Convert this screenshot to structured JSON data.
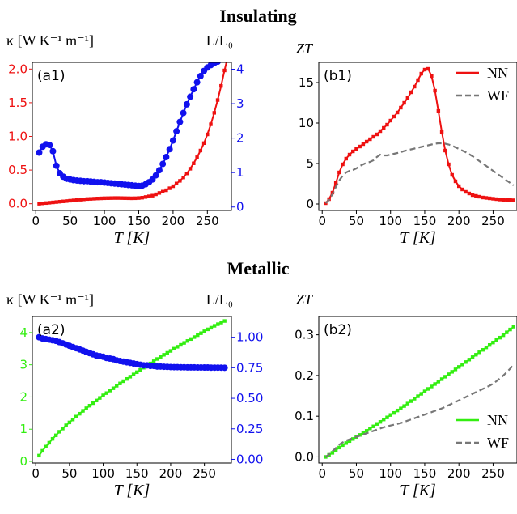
{
  "section_titles": {
    "top": "Insulating",
    "bottom": "Metallic"
  },
  "colors": {
    "red": "#ee1111",
    "blue": "#1111ee",
    "green": "#33ee11",
    "gray": "#777777"
  },
  "chart_data": [
    {
      "id": "a1",
      "type": "line",
      "panel_label": "(a1)",
      "title": "",
      "xlabel": "T [K]",
      "ylabel_left": "κ [W K⁻¹ m⁻¹]",
      "ylabel_right": "L/L₀",
      "xlim": [
        -5,
        285
      ],
      "ylim_left": [
        -0.1,
        2.1
      ],
      "ylim_right": [
        -0.1,
        4.2
      ],
      "xticks": [
        0,
        50,
        100,
        150,
        200,
        250
      ],
      "yticks_left": [
        "0.0",
        "0.5",
        "1.0",
        "1.5",
        "2.0"
      ],
      "yticks_right": [
        "0",
        "1",
        "2",
        "3",
        "4"
      ],
      "left_axis_color": "red",
      "right_axis_color": "blue",
      "grid": false,
      "series": [
        {
          "axis": "left",
          "color": "red",
          "marker": "square",
          "x": [
            5,
            10,
            15,
            20,
            25,
            30,
            35,
            40,
            45,
            50,
            55,
            60,
            65,
            70,
            75,
            80,
            85,
            90,
            95,
            100,
            105,
            110,
            115,
            120,
            125,
            130,
            135,
            140,
            145,
            150,
            155,
            160,
            165,
            170,
            175,
            180,
            185,
            190,
            195,
            200,
            205,
            210,
            215,
            220,
            225,
            230,
            235,
            240,
            245,
            250,
            255,
            260,
            265,
            270,
            275,
            280
          ],
          "y": [
            0.0,
            0.005,
            0.01,
            0.015,
            0.02,
            0.025,
            0.03,
            0.035,
            0.04,
            0.045,
            0.05,
            0.055,
            0.06,
            0.065,
            0.07,
            0.072,
            0.075,
            0.078,
            0.08,
            0.082,
            0.083,
            0.084,
            0.085,
            0.085,
            0.084,
            0.083,
            0.082,
            0.081,
            0.082,
            0.085,
            0.09,
            0.1,
            0.11,
            0.12,
            0.14,
            0.16,
            0.18,
            0.2,
            0.23,
            0.26,
            0.3,
            0.34,
            0.39,
            0.45,
            0.52,
            0.6,
            0.69,
            0.79,
            0.9,
            1.03,
            1.18,
            1.35,
            1.54,
            1.75,
            1.98,
            2.2
          ]
        },
        {
          "axis": "right",
          "color": "blue",
          "marker": "circle",
          "x": [
            5,
            10,
            15,
            20,
            25,
            30,
            35,
            40,
            45,
            50,
            55,
            60,
            65,
            70,
            75,
            80,
            85,
            90,
            95,
            100,
            105,
            110,
            115,
            120,
            125,
            130,
            135,
            140,
            145,
            150,
            155,
            160,
            165,
            170,
            175,
            180,
            185,
            190,
            195,
            200,
            205,
            210,
            215,
            220,
            225,
            230,
            235,
            240,
            245,
            250,
            255,
            260,
            265
          ],
          "y": [
            1.58,
            1.75,
            1.82,
            1.8,
            1.62,
            1.2,
            0.98,
            0.88,
            0.82,
            0.8,
            0.78,
            0.77,
            0.76,
            0.75,
            0.75,
            0.74,
            0.73,
            0.72,
            0.72,
            0.71,
            0.7,
            0.69,
            0.68,
            0.67,
            0.66,
            0.65,
            0.64,
            0.63,
            0.62,
            0.61,
            0.62,
            0.66,
            0.72,
            0.8,
            0.92,
            1.07,
            1.25,
            1.45,
            1.68,
            1.93,
            2.2,
            2.47,
            2.73,
            2.98,
            3.2,
            3.42,
            3.62,
            3.8,
            3.95,
            4.05,
            4.12,
            4.18,
            4.22
          ]
        }
      ]
    },
    {
      "id": "b1",
      "type": "line",
      "panel_label": "(b1)",
      "title": "",
      "xlabel": "T [K]",
      "ylabel": "ZT",
      "xlim": [
        -5,
        285
      ],
      "ylim": [
        -0.8,
        17.5
      ],
      "xticks": [
        0,
        50,
        100,
        150,
        200,
        250
      ],
      "yticks": [
        "0",
        "5",
        "10",
        "15"
      ],
      "grid": false,
      "legend": {
        "placement": "top-right",
        "entries": [
          "NN",
          "WF"
        ]
      },
      "series": [
        {
          "name": "NN",
          "color": "red",
          "marker": "square",
          "style": "solid",
          "x": [
            5,
            10,
            15,
            20,
            25,
            30,
            35,
            40,
            45,
            50,
            55,
            60,
            65,
            70,
            75,
            80,
            85,
            90,
            95,
            100,
            105,
            110,
            115,
            120,
            125,
            130,
            135,
            140,
            145,
            150,
            155,
            160,
            165,
            170,
            175,
            180,
            185,
            190,
            195,
            200,
            205,
            210,
            215,
            220,
            225,
            230,
            235,
            240,
            245,
            250,
            255,
            260,
            265,
            270,
            275,
            280
          ],
          "y": [
            0.1,
            0.6,
            1.4,
            2.6,
            3.9,
            4.9,
            5.6,
            6.1,
            6.5,
            6.8,
            7.1,
            7.4,
            7.7,
            8.0,
            8.3,
            8.6,
            9.0,
            9.4,
            9.8,
            10.3,
            10.8,
            11.3,
            11.9,
            12.5,
            13.1,
            13.8,
            14.5,
            15.3,
            16.1,
            16.6,
            16.7,
            15.8,
            14.0,
            11.5,
            8.9,
            6.6,
            4.9,
            3.6,
            2.8,
            2.2,
            1.8,
            1.5,
            1.3,
            1.1,
            1.0,
            0.9,
            0.8,
            0.75,
            0.7,
            0.65,
            0.6,
            0.55,
            0.52,
            0.5,
            0.48,
            0.46
          ]
        },
        {
          "name": "WF",
          "color": "gray",
          "marker": "none",
          "style": "dashed",
          "x": [
            5,
            10,
            15,
            20,
            25,
            30,
            35,
            40,
            45,
            50,
            55,
            60,
            65,
            70,
            75,
            80,
            85,
            90,
            95,
            100,
            105,
            110,
            115,
            120,
            125,
            130,
            135,
            140,
            145,
            150,
            155,
            160,
            165,
            170,
            175,
            180,
            185,
            190,
            195,
            200,
            205,
            210,
            215,
            220,
            225,
            230,
            235,
            240,
            245,
            250,
            255,
            260,
            265,
            270,
            275,
            280
          ],
          "y": [
            0.1,
            0.5,
            1.2,
            2.1,
            2.9,
            3.5,
            3.9,
            4.1,
            4.2,
            4.4,
            4.7,
            4.9,
            5.1,
            5.2,
            5.4,
            5.8,
            6.1,
            6.0,
            6.0,
            6.1,
            6.2,
            6.3,
            6.4,
            6.55,
            6.65,
            6.75,
            6.85,
            6.95,
            7.05,
            7.15,
            7.25,
            7.35,
            7.45,
            7.5,
            7.5,
            7.45,
            7.35,
            7.2,
            7.0,
            6.8,
            6.6,
            6.4,
            6.15,
            5.9,
            5.6,
            5.3,
            5.0,
            4.7,
            4.4,
            4.1,
            3.8,
            3.5,
            3.2,
            2.9,
            2.6,
            2.3
          ]
        }
      ]
    },
    {
      "id": "a2",
      "type": "line",
      "panel_label": "(a2)",
      "title": "",
      "xlabel": "T [K]",
      "ylabel_left": "κ [W K⁻¹ m⁻¹]",
      "ylabel_right": "L/L₀",
      "xlim": [
        -5,
        290
      ],
      "ylim_left": [
        -0.05,
        4.5
      ],
      "ylim_right": [
        -0.03,
        1.17
      ],
      "xticks": [
        0,
        50,
        100,
        150,
        200,
        250
      ],
      "yticks_left": [
        "0",
        "1",
        "2",
        "3",
        "4"
      ],
      "yticks_right": [
        "0.00",
        "0.25",
        "0.50",
        "0.75",
        "1.00"
      ],
      "left_axis_color": "green",
      "right_axis_color": "blue",
      "grid": false,
      "series": [
        {
          "axis": "left",
          "color": "green",
          "marker": "square",
          "x": [
            5,
            10,
            15,
            20,
            25,
            30,
            35,
            40,
            45,
            50,
            55,
            60,
            65,
            70,
            75,
            80,
            85,
            90,
            95,
            100,
            105,
            110,
            115,
            120,
            125,
            130,
            135,
            140,
            145,
            150,
            155,
            160,
            165,
            170,
            175,
            180,
            185,
            190,
            195,
            200,
            205,
            210,
            215,
            220,
            225,
            230,
            235,
            240,
            245,
            250,
            255,
            260,
            265,
            270,
            275,
            280
          ],
          "y": [
            0.18,
            0.33,
            0.46,
            0.58,
            0.7,
            0.81,
            0.92,
            1.02,
            1.12,
            1.21,
            1.3,
            1.39,
            1.48,
            1.57,
            1.65,
            1.73,
            1.81,
            1.89,
            1.97,
            2.05,
            2.12,
            2.2,
            2.27,
            2.35,
            2.42,
            2.49,
            2.56,
            2.63,
            2.7,
            2.77,
            2.84,
            2.91,
            2.98,
            3.04,
            3.11,
            3.18,
            3.24,
            3.31,
            3.37,
            3.43,
            3.5,
            3.56,
            3.62,
            3.68,
            3.74,
            3.8,
            3.86,
            3.92,
            3.98,
            4.04,
            4.1,
            4.15,
            4.21,
            4.26,
            4.31,
            4.36
          ]
        },
        {
          "axis": "right",
          "color": "blue",
          "marker": "circle",
          "x": [
            5,
            10,
            15,
            20,
            25,
            30,
            35,
            40,
            45,
            50,
            55,
            60,
            65,
            70,
            75,
            80,
            85,
            90,
            95,
            100,
            105,
            110,
            115,
            120,
            125,
            130,
            135,
            140,
            145,
            150,
            155,
            160,
            165,
            170,
            175,
            180,
            185,
            190,
            195,
            200,
            205,
            210,
            215,
            220,
            225,
            230,
            235,
            240,
            245,
            250,
            255,
            260,
            265,
            270,
            275,
            280
          ],
          "y": [
            1.0,
            0.99,
            0.985,
            0.98,
            0.975,
            0.97,
            0.96,
            0.95,
            0.94,
            0.93,
            0.92,
            0.91,
            0.9,
            0.89,
            0.88,
            0.87,
            0.86,
            0.85,
            0.845,
            0.84,
            0.83,
            0.825,
            0.82,
            0.81,
            0.805,
            0.8,
            0.795,
            0.79,
            0.785,
            0.78,
            0.775,
            0.77,
            0.77,
            0.765,
            0.765,
            0.76,
            0.76,
            0.758,
            0.757,
            0.756,
            0.755,
            0.755,
            0.754,
            0.754,
            0.753,
            0.753,
            0.753,
            0.752,
            0.752,
            0.752,
            0.752,
            0.751,
            0.751,
            0.751,
            0.751,
            0.75
          ]
        }
      ]
    },
    {
      "id": "b2",
      "type": "line",
      "panel_label": "(b2)",
      "title": "",
      "xlabel": "T [K]",
      "ylabel": "ZT",
      "xlim": [
        -5,
        285
      ],
      "ylim": [
        -0.015,
        0.345
      ],
      "xticks": [
        0,
        50,
        100,
        150,
        200,
        250
      ],
      "yticks": [
        "0.0",
        "0.1",
        "0.2",
        "0.3"
      ],
      "grid": false,
      "legend": {
        "placement": "lower-right",
        "entries": [
          "NN",
          "WF"
        ]
      },
      "series": [
        {
          "name": "NN",
          "color": "green",
          "marker": "square",
          "style": "solid",
          "x": [
            5,
            10,
            15,
            20,
            25,
            30,
            35,
            40,
            45,
            50,
            55,
            60,
            65,
            70,
            75,
            80,
            85,
            90,
            95,
            100,
            105,
            110,
            115,
            120,
            125,
            130,
            135,
            140,
            145,
            150,
            155,
            160,
            165,
            170,
            175,
            180,
            185,
            190,
            195,
            200,
            205,
            210,
            215,
            220,
            225,
            230,
            235,
            240,
            245,
            250,
            255,
            260,
            265,
            270,
            275,
            280
          ],
          "y": [
            0.0,
            0.005,
            0.01,
            0.017,
            0.023,
            0.029,
            0.034,
            0.039,
            0.044,
            0.049,
            0.054,
            0.059,
            0.064,
            0.07,
            0.075,
            0.081,
            0.086,
            0.092,
            0.097,
            0.103,
            0.108,
            0.114,
            0.119,
            0.125,
            0.131,
            0.137,
            0.143,
            0.149,
            0.155,
            0.161,
            0.167,
            0.173,
            0.179,
            0.185,
            0.191,
            0.197,
            0.203,
            0.209,
            0.215,
            0.221,
            0.227,
            0.233,
            0.239,
            0.245,
            0.251,
            0.257,
            0.263,
            0.269,
            0.275,
            0.281,
            0.287,
            0.293,
            0.299,
            0.306,
            0.313,
            0.32
          ]
        },
        {
          "name": "WF",
          "color": "gray",
          "marker": "none",
          "style": "dashed",
          "x": [
            5,
            10,
            15,
            20,
            25,
            30,
            35,
            40,
            45,
            50,
            55,
            60,
            65,
            70,
            75,
            80,
            85,
            90,
            95,
            100,
            105,
            110,
            115,
            120,
            125,
            130,
            135,
            140,
            145,
            150,
            155,
            160,
            165,
            170,
            175,
            180,
            185,
            190,
            195,
            200,
            205,
            210,
            215,
            220,
            225,
            230,
            235,
            240,
            245,
            250,
            255,
            260,
            265,
            270,
            275,
            280
          ],
          "y": [
            0.0,
            0.006,
            0.014,
            0.022,
            0.03,
            0.036,
            0.04,
            0.043,
            0.046,
            0.049,
            0.052,
            0.055,
            0.058,
            0.061,
            0.064,
            0.067,
            0.07,
            0.073,
            0.075,
            0.077,
            0.079,
            0.081,
            0.083,
            0.086,
            0.089,
            0.092,
            0.095,
            0.098,
            0.101,
            0.104,
            0.107,
            0.11,
            0.113,
            0.116,
            0.119,
            0.123,
            0.127,
            0.131,
            0.135,
            0.139,
            0.143,
            0.147,
            0.151,
            0.155,
            0.159,
            0.163,
            0.167,
            0.171,
            0.175,
            0.18,
            0.186,
            0.193,
            0.2,
            0.208,
            0.217,
            0.227
          ]
        }
      ]
    }
  ]
}
